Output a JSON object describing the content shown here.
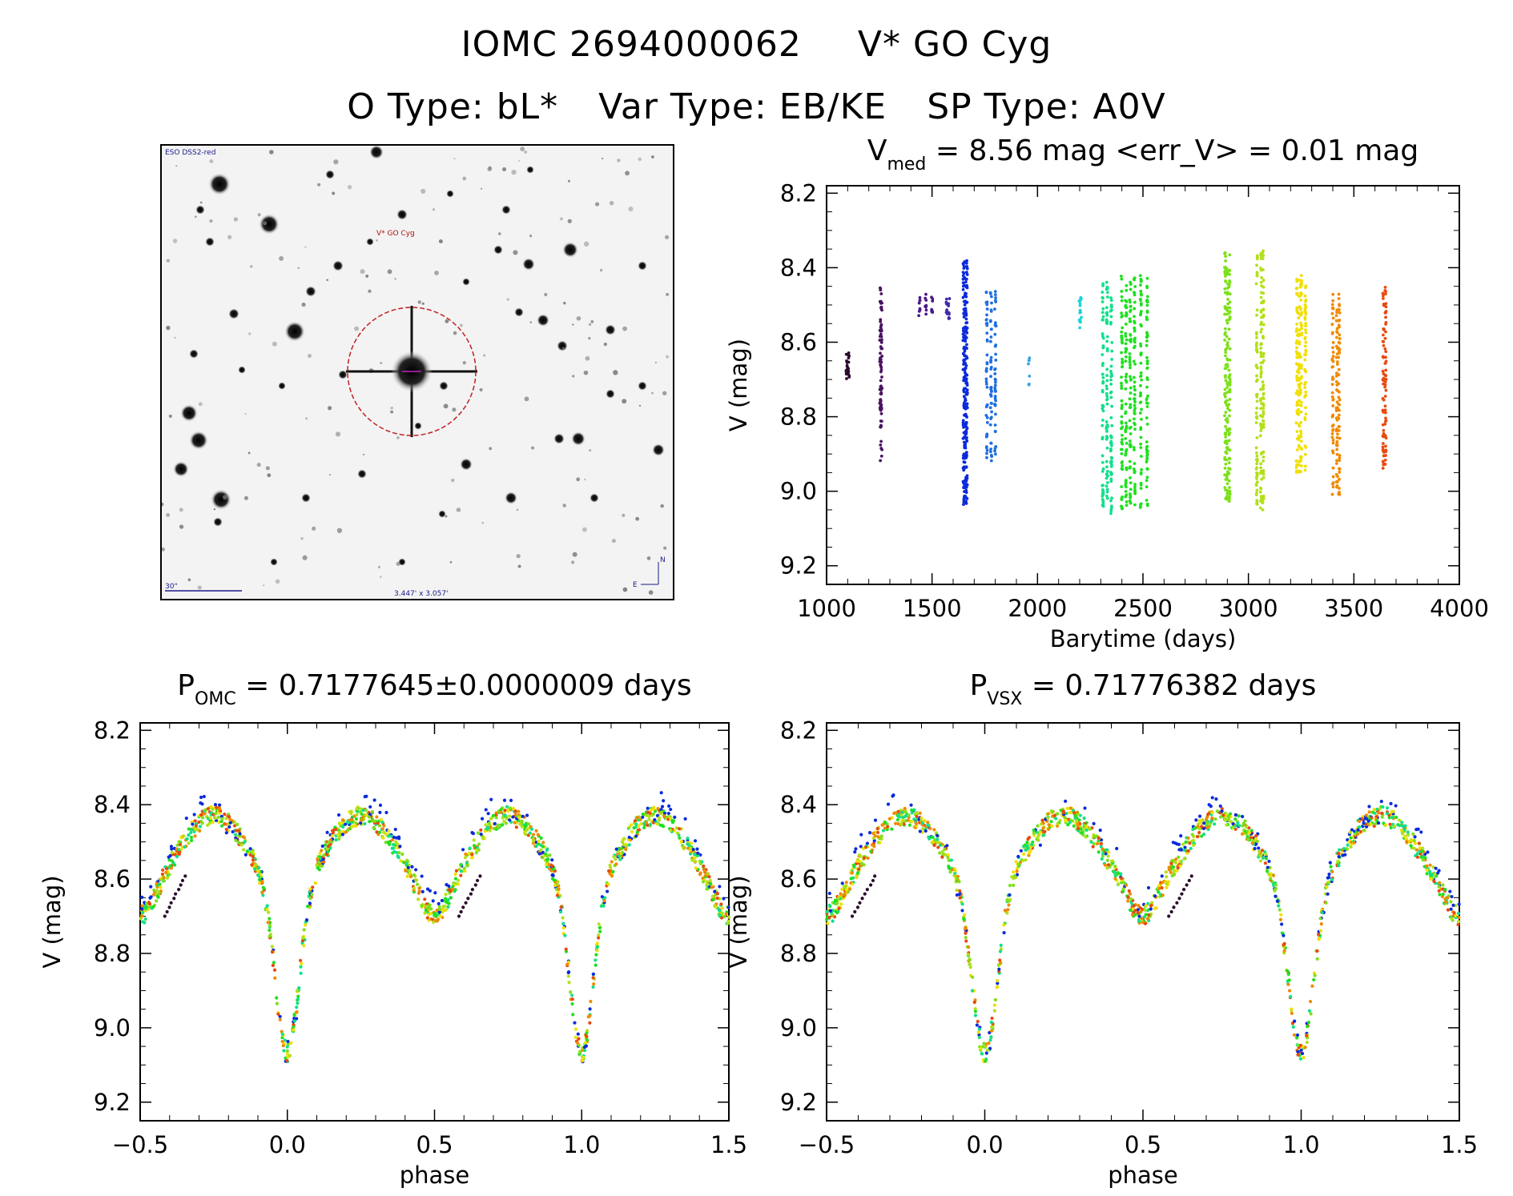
{
  "title": {
    "line1": [
      "IOMC 2694000062",
      "V* GO Cyg"
    ],
    "line2": [
      "O Type: bL*",
      "Var Type: EB/KE",
      "SP Type: A0V"
    ]
  },
  "finder_chart": {
    "survey_label": "ESO DSS2-red",
    "target_label": "V* GO Cyg",
    "scale_label": "30\"",
    "fov_label": "3.447' x 3.057'",
    "compass_north": "N",
    "compass_east": "E"
  },
  "chart_data": [
    {
      "type": "scatter",
      "panel": "light-curve",
      "title_main": "V",
      "title_sub": "med",
      "title_rest": "= 8.56 mag <err_V> = 0.01 mag",
      "xlabel": "Barytime (days)",
      "ylabel": "V (mag)",
      "xlim": [
        1000,
        4000
      ],
      "ylim": [
        9.25,
        8.18
      ],
      "y_inverted": true,
      "xticks": [
        "1000",
        "1500",
        "2000",
        "2500",
        "3000",
        "3500",
        "4000"
      ],
      "yticks": [
        "8.2",
        "8.4",
        "8.6",
        "8.8",
        "9.0",
        "9.2"
      ],
      "grid": false,
      "series": [
        {
          "color": "#2b0a2e",
          "x": [
            1100,
            1105,
            1095
          ],
          "y_range": [
            8.62,
            8.7
          ]
        },
        {
          "color": "#4a1460",
          "x": [
            1255,
            1260
          ],
          "y_range": [
            8.45,
            8.92
          ]
        },
        {
          "color": "#4a1a8a",
          "x": [
            1440,
            1470,
            1500
          ],
          "y_range": [
            8.47,
            8.53
          ]
        },
        {
          "color": "#3f2aa8",
          "x": [
            1570,
            1580
          ],
          "y_range": [
            8.48,
            8.55
          ]
        },
        {
          "color": "#0b2bdb",
          "x": [
            1650,
            1655,
            1660,
            1665
          ],
          "y_range": [
            8.38,
            9.04
          ]
        },
        {
          "color": "#1f6fe0",
          "x": [
            1760,
            1780,
            1800
          ],
          "y_range": [
            8.46,
            8.92
          ]
        },
        {
          "color": "#3aa3e0",
          "x": [
            1960
          ],
          "y_range": [
            8.64,
            8.72
          ]
        },
        {
          "color": "#1fd3d8",
          "x": [
            2200,
            2205
          ],
          "y_range": [
            8.48,
            8.57
          ]
        },
        {
          "color": "#12e08a",
          "x": [
            2310,
            2330,
            2350
          ],
          "y_range": [
            8.43,
            9.06
          ]
        },
        {
          "color": "#1fe01f",
          "x": [
            2400,
            2420,
            2440,
            2460,
            2490,
            2520
          ],
          "y_range": [
            8.42,
            9.05
          ]
        },
        {
          "color": "#7de01a",
          "x": [
            2890,
            2900,
            2910
          ],
          "y_range": [
            8.36,
            9.03
          ]
        },
        {
          "color": "#b2e01a",
          "x": [
            3040,
            3060,
            3070
          ],
          "y_range": [
            8.35,
            9.05
          ]
        },
        {
          "color": "#f0e000",
          "x": [
            3230,
            3240,
            3250,
            3270
          ],
          "y_range": [
            8.42,
            8.96
          ]
        },
        {
          "color": "#f08a00",
          "x": [
            3400,
            3420,
            3430
          ],
          "y_range": [
            8.47,
            9.01
          ]
        },
        {
          "color": "#e84a10",
          "x": [
            3640,
            3650
          ],
          "y_range": [
            8.44,
            8.94
          ]
        }
      ]
    },
    {
      "type": "scatter",
      "panel": "phase-omc",
      "title_main": "P",
      "title_sub": "OMC",
      "title_rest": "= 0.7177645±0.0000009 days",
      "xlabel": "phase",
      "ylabel": "V (mag)",
      "xlim": [
        -0.5,
        1.5
      ],
      "ylim": [
        9.25,
        8.18
      ],
      "y_inverted": true,
      "xticks": [
        "−0.5",
        "0.0",
        "0.5",
        "1.0",
        "1.5"
      ],
      "yticks": [
        "8.2",
        "8.4",
        "8.6",
        "8.8",
        "9.0",
        "9.2"
      ],
      "grid": false,
      "max_mag": 8.45,
      "primary_min": 9.04,
      "secondary_min": 8.67
    },
    {
      "type": "scatter",
      "panel": "phase-vsx",
      "title_main": "P",
      "title_sub": "VSX",
      "title_rest": "= 0.71776382 days",
      "xlabel": "phase",
      "ylabel": "V (mag)",
      "xlim": [
        -0.5,
        1.5
      ],
      "ylim": [
        9.25,
        8.18
      ],
      "y_inverted": true,
      "xticks": [
        "−0.5",
        "0.0",
        "0.5",
        "1.0",
        "1.5"
      ],
      "yticks": [
        "8.2",
        "8.4",
        "8.6",
        "8.8",
        "9.0",
        "9.2"
      ],
      "grid": false,
      "max_mag": 8.45,
      "primary_min": 9.04,
      "secondary_min": 8.67
    }
  ]
}
